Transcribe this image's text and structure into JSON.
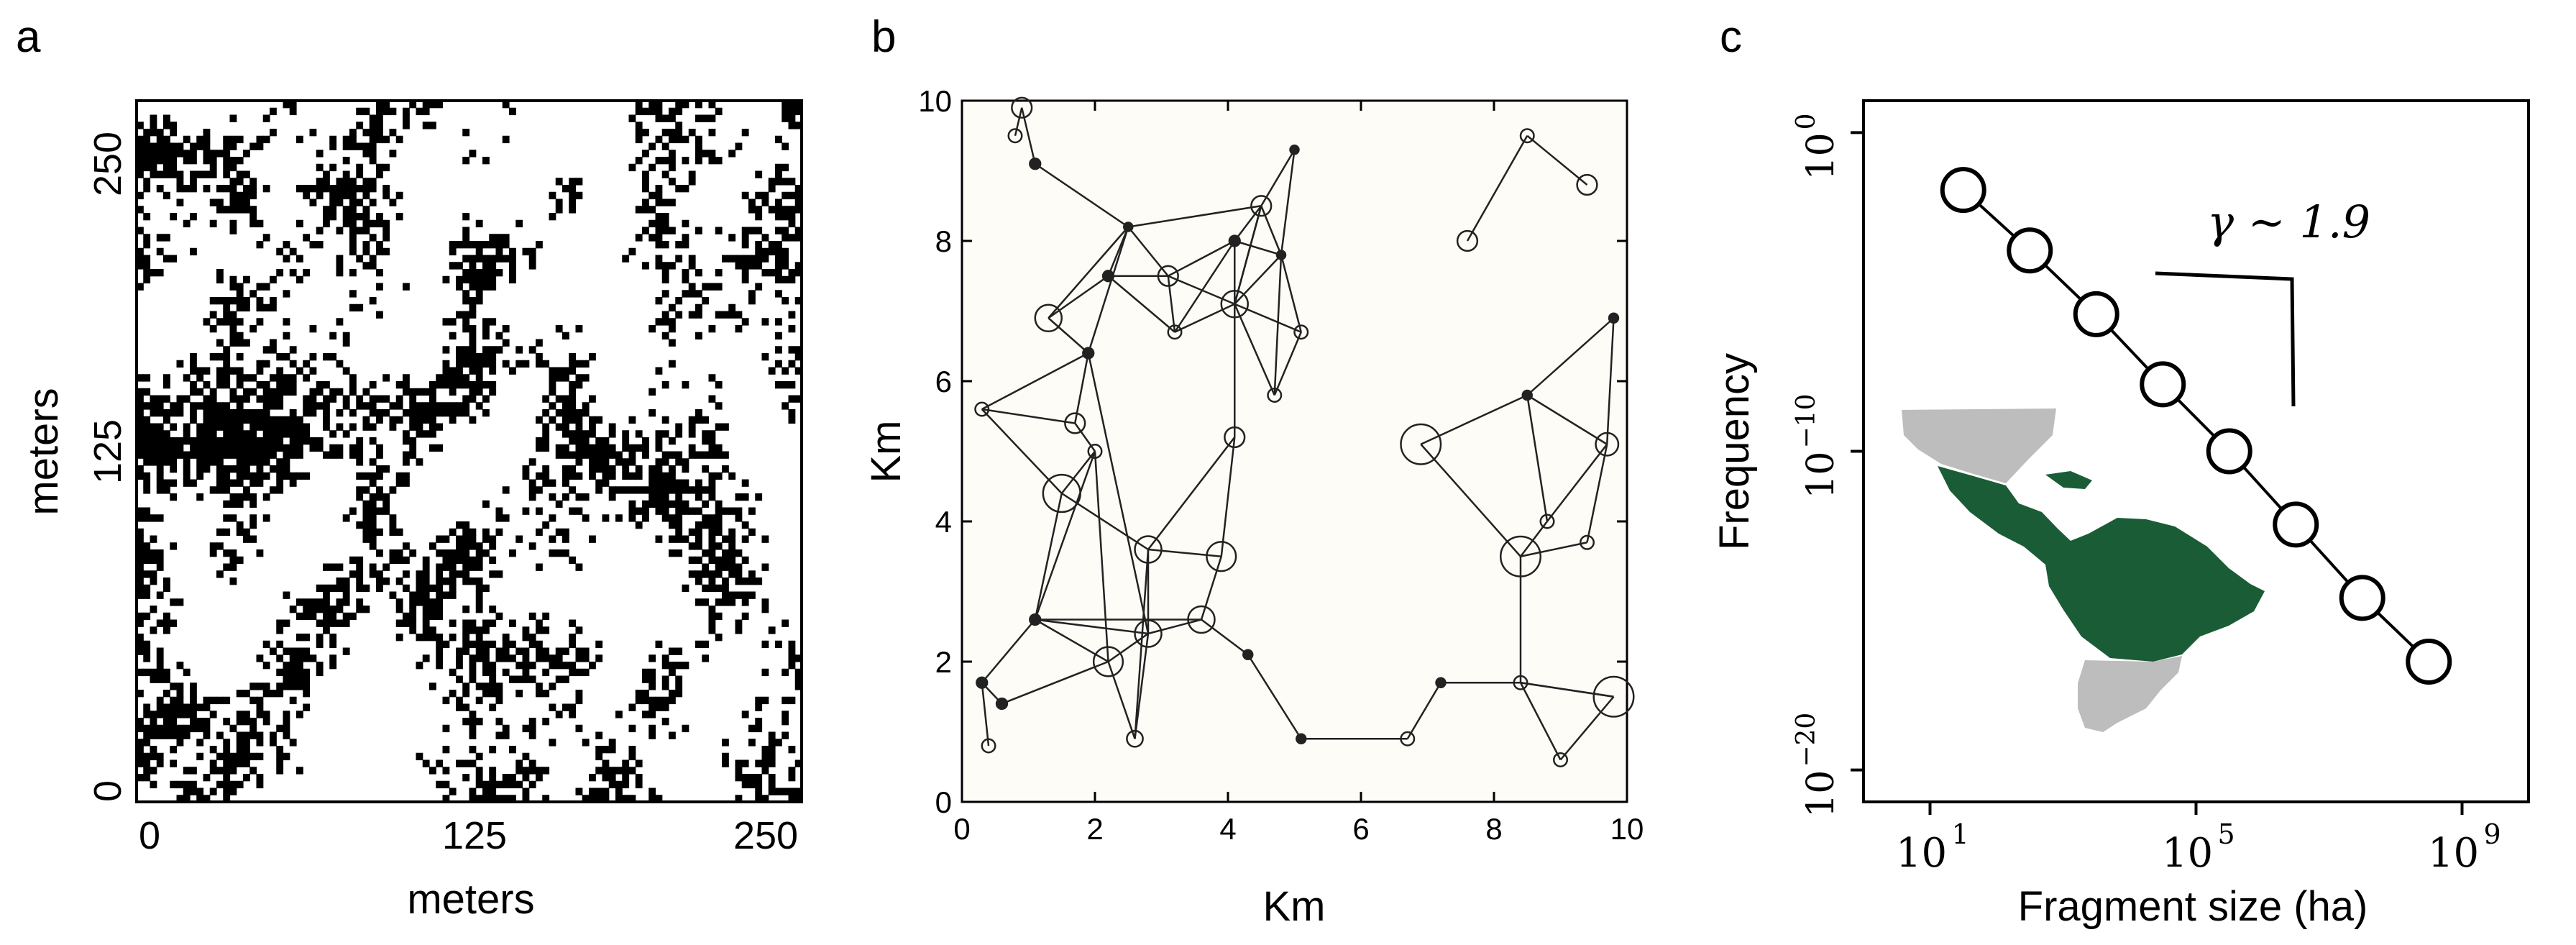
{
  "panels": {
    "a": {
      "letter": "a"
    },
    "b": {
      "letter": "b"
    },
    "c": {
      "letter": "c"
    }
  },
  "chart_data": [
    {
      "panel": "a",
      "type": "heatmap",
      "xlabel": "meters",
      "ylabel": "meters",
      "xlim": [
        0,
        250
      ],
      "ylim": [
        0,
        250
      ],
      "xticks": [
        "0",
        "125",
        "250"
      ],
      "yticks": [
        "0",
        "125",
        "250"
      ],
      "colors": {
        "occupied": "#000000",
        "empty": "#ffffff"
      },
      "grid_cells": 100
    },
    {
      "panel": "b",
      "type": "scatter",
      "xlabel": "Km",
      "ylabel": "Km",
      "xlim": [
        0,
        10
      ],
      "ylim": [
        0,
        10
      ],
      "xticks": [
        "0",
        "2",
        "4",
        "6",
        "8",
        "10"
      ],
      "yticks": [
        "0",
        "2",
        "4",
        "6",
        "8",
        "10"
      ],
      "nodes": [
        [
          0.9,
          9.9,
          0.15
        ],
        [
          0.8,
          9.5,
          0.1
        ],
        [
          1.1,
          9.1,
          0.08
        ],
        [
          2.5,
          8.2,
          0.06
        ],
        [
          1.3,
          6.9,
          0.2
        ],
        [
          1.9,
          6.4,
          0.08
        ],
        [
          2.2,
          7.5,
          0.08
        ],
        [
          3.1,
          7.5,
          0.15
        ],
        [
          3.2,
          6.7,
          0.1
        ],
        [
          4.1,
          7.1,
          0.2
        ],
        [
          4.1,
          8.0,
          0.08
        ],
        [
          4.5,
          8.5,
          0.15
        ],
        [
          4.8,
          7.8,
          0.06
        ],
        [
          5.0,
          9.3,
          0.05
        ],
        [
          5.1,
          6.7,
          0.1
        ],
        [
          4.7,
          5.8,
          0.1
        ],
        [
          4.1,
          5.2,
          0.15
        ],
        [
          0.3,
          5.6,
          0.1
        ],
        [
          1.7,
          5.4,
          0.15
        ],
        [
          2.0,
          5.0,
          0.1
        ],
        [
          1.5,
          4.4,
          0.28
        ],
        [
          2.8,
          3.6,
          0.2
        ],
        [
          3.9,
          3.5,
          0.22
        ],
        [
          3.6,
          2.6,
          0.2
        ],
        [
          2.8,
          2.4,
          0.2
        ],
        [
          2.2,
          2.0,
          0.22
        ],
        [
          1.1,
          2.6,
          0.08
        ],
        [
          0.3,
          1.7,
          0.08
        ],
        [
          0.6,
          1.4,
          0.08
        ],
        [
          0.4,
          0.8,
          0.1
        ],
        [
          2.6,
          0.9,
          0.12
        ],
        [
          4.3,
          2.1,
          0.07
        ],
        [
          5.1,
          0.9,
          0.07
        ],
        [
          6.7,
          0.9,
          0.1
        ],
        [
          7.2,
          1.7,
          0.07
        ],
        [
          8.4,
          1.7,
          0.1
        ],
        [
          9.0,
          0.6,
          0.1
        ],
        [
          9.8,
          1.5,
          0.3
        ],
        [
          6.9,
          5.1,
          0.3
        ],
        [
          8.5,
          5.8,
          0.07
        ],
        [
          9.8,
          6.9,
          0.07
        ],
        [
          9.7,
          5.1,
          0.17
        ],
        [
          8.4,
          3.5,
          0.3
        ],
        [
          8.8,
          4.0,
          0.1
        ],
        [
          9.4,
          3.7,
          0.1
        ],
        [
          7.6,
          8.0,
          0.15
        ],
        [
          8.5,
          9.5,
          0.1
        ],
        [
          9.4,
          8.8,
          0.15
        ]
      ],
      "edges": [
        [
          0,
          2
        ],
        [
          1,
          0
        ],
        [
          2,
          3
        ],
        [
          3,
          4
        ],
        [
          3,
          5
        ],
        [
          3,
          6
        ],
        [
          3,
          7
        ],
        [
          3,
          11
        ],
        [
          4,
          6
        ],
        [
          4,
          5
        ],
        [
          6,
          7
        ],
        [
          6,
          8
        ],
        [
          7,
          8
        ],
        [
          7,
          9
        ],
        [
          7,
          10
        ],
        [
          8,
          10
        ],
        [
          9,
          10
        ],
        [
          9,
          11
        ],
        [
          9,
          12
        ],
        [
          9,
          14
        ],
        [
          9,
          15
        ],
        [
          8,
          9
        ],
        [
          10,
          11
        ],
        [
          11,
          13
        ],
        [
          12,
          13
        ],
        [
          11,
          12
        ],
        [
          10,
          12
        ],
        [
          12,
          14
        ],
        [
          14,
          15
        ],
        [
          11,
          9
        ],
        [
          10,
          16
        ],
        [
          16,
          21
        ],
        [
          12,
          15
        ],
        [
          5,
          17
        ],
        [
          17,
          18
        ],
        [
          17,
          20
        ],
        [
          5,
          18
        ],
        [
          18,
          19
        ],
        [
          19,
          20
        ],
        [
          20,
          21
        ],
        [
          19,
          25
        ],
        [
          5,
          24
        ],
        [
          21,
          22
        ],
        [
          22,
          23
        ],
        [
          23,
          24
        ],
        [
          24,
          21
        ],
        [
          22,
          16
        ],
        [
          23,
          31
        ],
        [
          24,
          25
        ],
        [
          25,
          26
        ],
        [
          26,
          24
        ],
        [
          26,
          23
        ],
        [
          26,
          27
        ],
        [
          27,
          28
        ],
        [
          27,
          29
        ],
        [
          28,
          25
        ],
        [
          26,
          19
        ],
        [
          20,
          26
        ],
        [
          25,
          30
        ],
        [
          24,
          30
        ],
        [
          30,
          21
        ],
        [
          31,
          32
        ],
        [
          32,
          33
        ],
        [
          33,
          34
        ],
        [
          34,
          35
        ],
        [
          35,
          36
        ],
        [
          35,
          37
        ],
        [
          37,
          35
        ],
        [
          36,
          37
        ],
        [
          35,
          42
        ],
        [
          42,
          43
        ],
        [
          43,
          41
        ],
        [
          41,
          44
        ],
        [
          44,
          42
        ],
        [
          41,
          39
        ],
        [
          38,
          39
        ],
        [
          39,
          40
        ],
        [
          39,
          43
        ],
        [
          38,
          42
        ],
        [
          40,
          41
        ],
        [
          45,
          46
        ],
        [
          46,
          47
        ]
      ]
    },
    {
      "panel": "c",
      "type": "line",
      "xlabel": "Fragment size (ha)",
      "ylabel": "Frequency",
      "xscale": "log",
      "yscale": "log",
      "xlim_log10": [
        0,
        10
      ],
      "ylim_log10": [
        -21,
        1
      ],
      "xticks": [
        {
          "base": "10",
          "exp": "1",
          "log10": 1
        },
        {
          "base": "10",
          "exp": "5",
          "log10": 5
        },
        {
          "base": "10",
          "exp": "9",
          "log10": 9
        }
      ],
      "yticks": [
        {
          "base": "10",
          "exp": "0",
          "log10": 0
        },
        {
          "base": "10",
          "exp": "−10",
          "log10": -10
        },
        {
          "base": "10",
          "exp": "−20",
          "log10": -20
        }
      ],
      "series": [
        {
          "x_log10": [
            1.5,
            2.5,
            3.5,
            4.5,
            5.5,
            6.5,
            7.5,
            8.5
          ],
          "y_log10": [
            -1.8,
            -3.7,
            -5.7,
            -7.9,
            -10.0,
            -12.3,
            -14.6,
            -16.6
          ]
        }
      ],
      "annotation": "γ ∼ 1.9",
      "inset_colors": {
        "forest": "#1a5c36",
        "other": "#bdbdbd"
      }
    }
  ]
}
